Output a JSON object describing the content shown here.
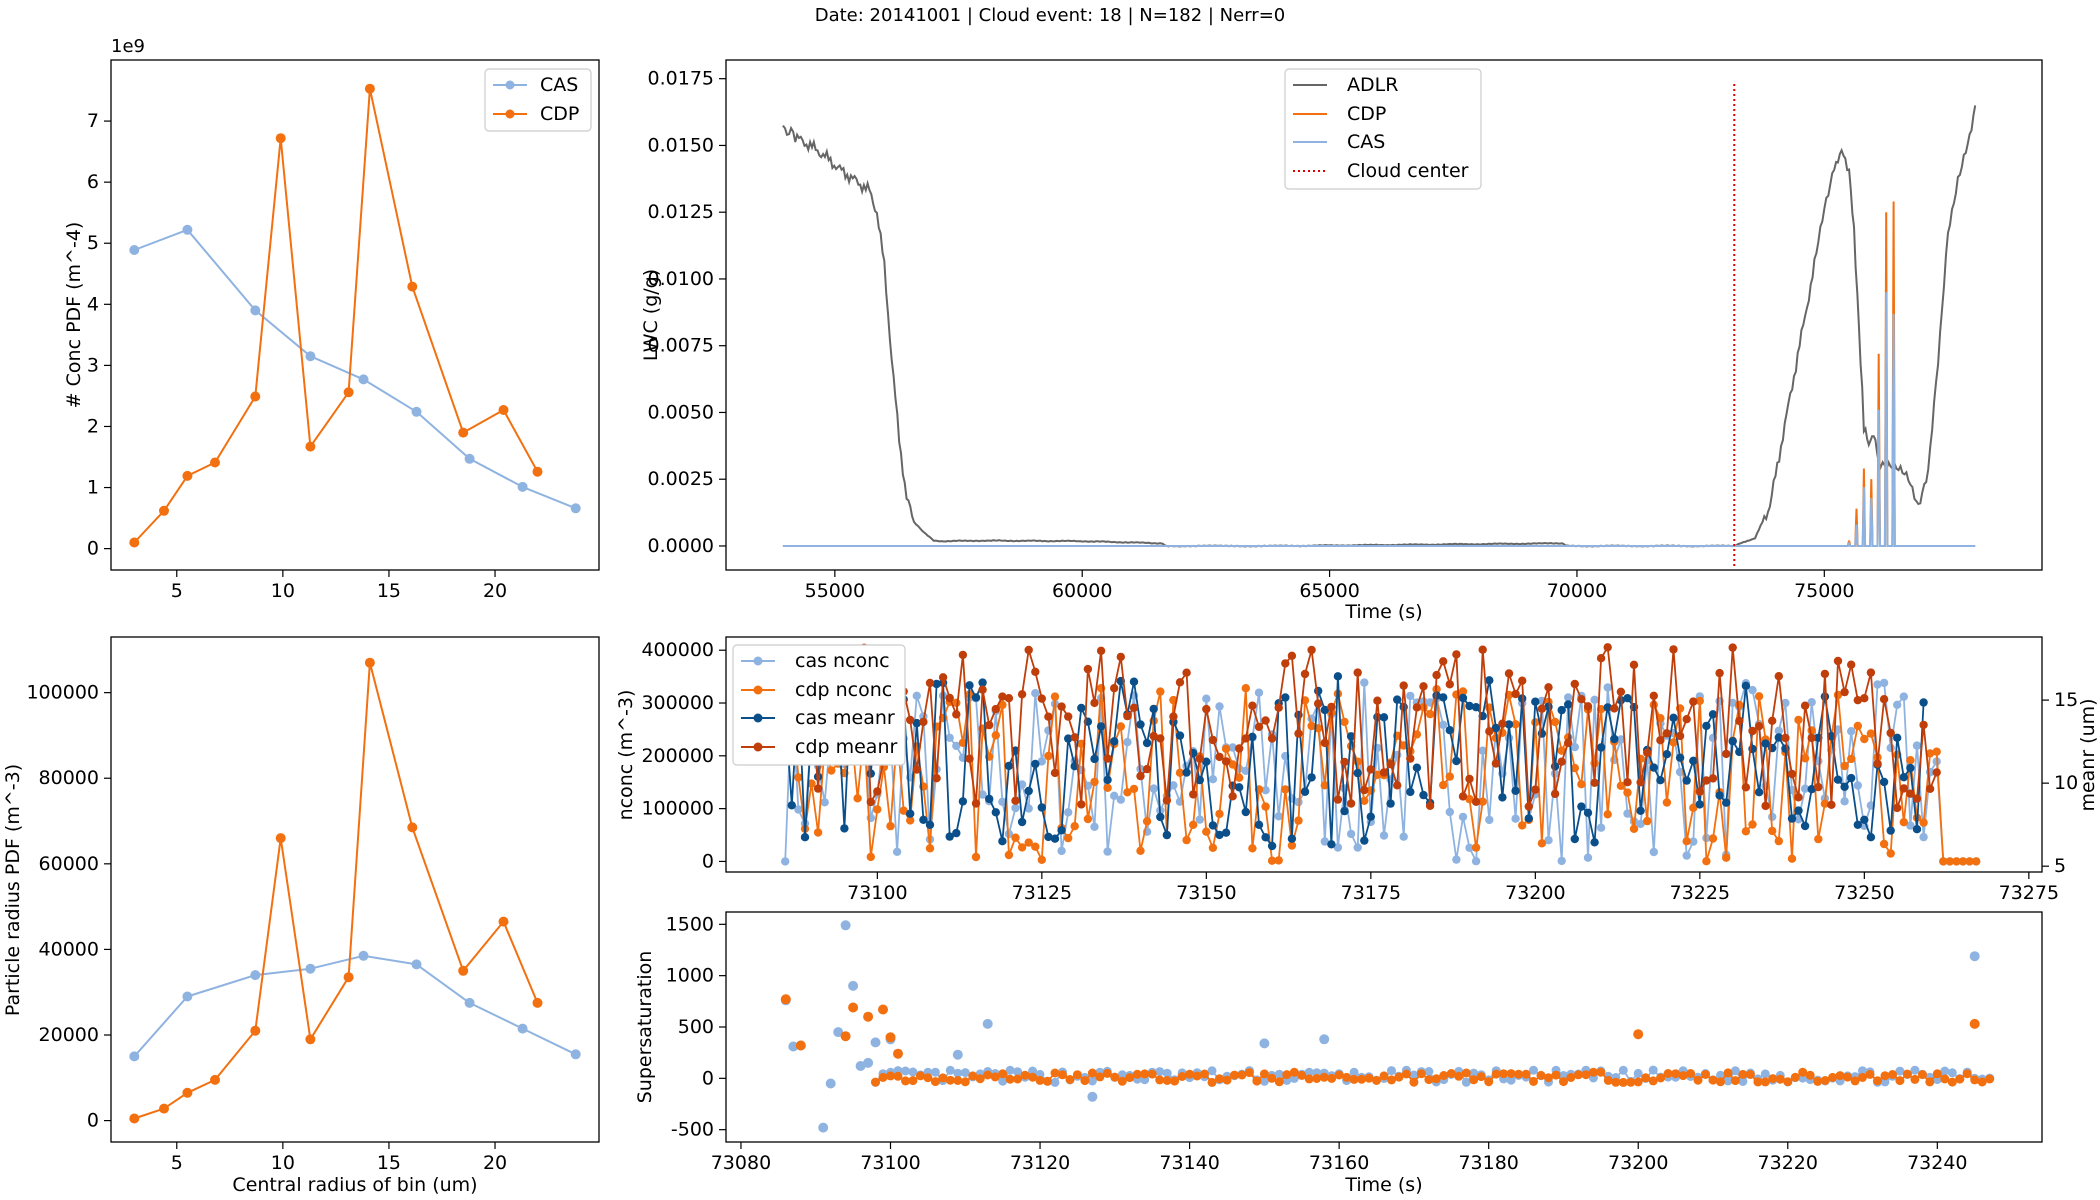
{
  "suptitle": "Date: 20141001 | Cloud event: 18 | N=182 | Nerr=0",
  "colors": {
    "cas": "#8fb3e0",
    "cdp": "#f2700f",
    "adlr": "#666666",
    "cas_meanr": "#0b4f8a",
    "cdp_meanr": "#c03e0a",
    "cloud_center": "#e00000"
  },
  "chart_data": [
    {
      "id": "conc_pdf",
      "type": "line",
      "title": "",
      "xlabel": "",
      "ylabel": "# Conc PDF (m^-4)",
      "offset_text": "1e9",
      "xlim": [
        1.9,
        24.9
      ],
      "ylim": [
        -0.35,
        8.0
      ],
      "x_ticks": [
        5,
        10,
        15,
        20
      ],
      "y_ticks": [
        0,
        1,
        2,
        3,
        4,
        5,
        6,
        7
      ],
      "legend": "upper right",
      "series": [
        {
          "name": "CAS",
          "color": "#8fb3e0",
          "x": [
            3.0,
            5.5,
            8.7,
            11.3,
            13.8,
            16.3,
            18.8,
            21.3,
            23.8
          ],
          "y": [
            4.89,
            5.22,
            3.9,
            3.15,
            2.77,
            2.24,
            1.47,
            1.01,
            0.66
          ]
        },
        {
          "name": "CDP",
          "color": "#f2700f",
          "x": [
            3.0,
            4.4,
            5.5,
            6.8,
            8.7,
            9.9,
            11.3,
            13.1,
            14.1,
            16.1,
            18.5,
            20.4,
            22.0
          ],
          "y": [
            0.1,
            0.62,
            1.19,
            1.41,
            2.49,
            6.72,
            1.67,
            2.56,
            7.53,
            4.29,
            1.9,
            2.27,
            1.26
          ]
        }
      ]
    },
    {
      "id": "lwc",
      "type": "line",
      "title": "",
      "xlabel": "Time (s)",
      "ylabel": "LWC (g/g)",
      "xlim": [
        52800,
        79400
      ],
      "ylim": [
        -0.0009,
        0.0182
      ],
      "x_ticks": [
        55000,
        60000,
        65000,
        70000,
        75000
      ],
      "y_ticks": [
        "0.0000",
        "0.0025",
        "0.0050",
        "0.0075",
        "0.0100",
        "0.0125",
        "0.0150",
        "0.0175"
      ],
      "legend": "upper center",
      "cloud_center": 73180,
      "series": [
        {
          "name": "ADLR",
          "color": "#666666",
          "x": [
            53950,
            54200,
            54500,
            54800,
            55100,
            55400,
            55700,
            55850,
            56000,
            56150,
            56300,
            56450,
            56600,
            56800,
            57000,
            57200,
            58000,
            60000,
            61600,
            61700,
            64000,
            69700,
            69800,
            73180,
            73600,
            73900,
            74200,
            74500,
            74800,
            75000,
            75200,
            75350,
            75500,
            75600,
            75700,
            75800,
            75900,
            76000,
            76100,
            76300,
            76500,
            76700,
            76900,
            77100,
            77300,
            77500,
            77700,
            77900,
            78050
          ],
          "y": [
            0.0157,
            0.0153,
            0.015,
            0.0146,
            0.0141,
            0.0137,
            0.0133,
            0.0125,
            0.0105,
            0.007,
            0.004,
            0.0018,
            0.0009,
            0.0005,
            0.0002,
            0.00018,
            0.0002,
            0.00018,
            0.0001,
            0.0,
            0.0,
            0.0001,
            0.0,
            0.0,
            0.0003,
            0.0015,
            0.0045,
            0.0075,
            0.0105,
            0.0127,
            0.0143,
            0.0147,
            0.0141,
            0.0118,
            0.0082,
            0.0045,
            0.0038,
            0.0042,
            0.0032,
            0.0031,
            0.0028,
            0.0025,
            0.0016,
            0.0028,
            0.0068,
            0.0118,
            0.0138,
            0.015,
            0.0165
          ]
        },
        {
          "name": "CDP",
          "color": "#f2700f",
          "x": [
            75500,
            75650,
            75800,
            75950,
            76100,
            76250,
            76400
          ],
          "y": [
            0.0002,
            0.0014,
            0.0029,
            0.0025,
            0.0072,
            0.0125,
            0.0129
          ]
        },
        {
          "name": "CAS",
          "color": "#8fb3e0",
          "x": [
            75500,
            75650,
            75800,
            75950,
            76100,
            76250,
            76400
          ],
          "y": [
            0.0001,
            0.0008,
            0.0022,
            0.0018,
            0.0051,
            0.0095,
            0.0087
          ]
        }
      ],
      "cloud_center_label": "Cloud center"
    },
    {
      "id": "radius_pdf",
      "type": "line",
      "title": "",
      "xlabel": "Central radius of bin (um)",
      "ylabel": "Particle radius PDF (m^-3)",
      "xlim": [
        1.9,
        24.9
      ],
      "ylim": [
        -5000,
        113000
      ],
      "x_ticks": [
        5,
        10,
        15,
        20
      ],
      "y_ticks": [
        0,
        20000,
        40000,
        60000,
        80000,
        100000
      ],
      "series": [
        {
          "name": "CAS",
          "color": "#8fb3e0",
          "x": [
            3.0,
            5.5,
            8.7,
            11.3,
            13.8,
            16.3,
            18.8,
            21.3,
            23.8
          ],
          "y": [
            15000,
            29000,
            34000,
            35500,
            38500,
            36500,
            27500,
            21500,
            15500
          ]
        },
        {
          "name": "CDP",
          "color": "#f2700f",
          "x": [
            3.0,
            4.4,
            5.5,
            6.8,
            8.7,
            9.9,
            11.3,
            13.1,
            14.1,
            16.1,
            18.5,
            20.4,
            22.0
          ],
          "y": [
            500,
            2800,
            6500,
            9500,
            21000,
            66000,
            19000,
            33500,
            107000,
            68500,
            35000,
            46500,
            27500
          ]
        }
      ]
    },
    {
      "id": "nconc_meanr",
      "type": "line",
      "title": "",
      "xlabel": "",
      "ylabel": "nconc (m^-3)",
      "ylabel_right": "meanr (um)",
      "xlim": [
        73077,
        73277
      ],
      "ylim": [
        -20000,
        425000
      ],
      "ylim_right": [
        4.65,
        18.8
      ],
      "x_ticks": [
        73100,
        73125,
        73150,
        73175,
        73200,
        73225,
        73250,
        73275
      ],
      "y_ticks": [
        0,
        100000,
        200000,
        300000,
        400000
      ],
      "y_ticks_right": [
        5,
        10,
        15
      ],
      "legend": "upper left",
      "series_names": [
        "cas nconc",
        "cdp nconc",
        "cas meanr",
        "cdp meanr"
      ],
      "series_colors": [
        "#8fb3e0",
        "#f2700f",
        "#0b4f8a",
        "#c03e0a"
      ],
      "t_start": 73086,
      "t_end": 73267
    },
    {
      "id": "supersaturation",
      "type": "scatter",
      "title": "",
      "xlabel": "Time (s)",
      "ylabel": "Supersaturation",
      "xlim": [
        73078,
        73254
      ],
      "ylim": [
        -620,
        1620
      ],
      "x_ticks": [
        73080,
        73100,
        73120,
        73140,
        73160,
        73180,
        73200,
        73220,
        73240
      ],
      "y_ticks": [
        -500,
        0,
        500,
        1000,
        1500
      ],
      "series": [
        {
          "name": "cas",
          "color": "#8fb3e0",
          "x": [
            73086,
            73087,
            73088,
            73091,
            73092,
            73093,
            73094,
            73095,
            73096,
            73097,
            73098,
            73100,
            73109,
            73113,
            73127,
            73150,
            73158,
            73245
          ],
          "y": [
            760,
            310,
            320,
            -480,
            -50,
            450,
            1490,
            900,
            120,
            150,
            350,
            380,
            230,
            530,
            -180,
            340,
            380,
            1190
          ]
        },
        {
          "name": "cdp",
          "color": "#f2700f",
          "x": [
            73086,
            73088,
            73094,
            73095,
            73097,
            73099,
            73100,
            73101,
            73200,
            73245
          ],
          "y": [
            770,
            320,
            410,
            690,
            600,
            670,
            400,
            240,
            430,
            530
          ]
        }
      ]
    }
  ]
}
